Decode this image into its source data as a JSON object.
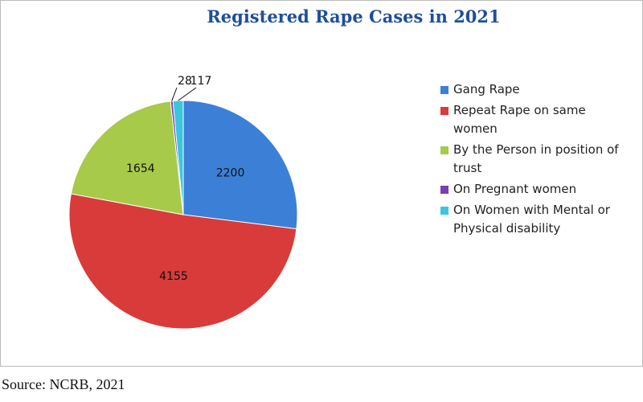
{
  "chart_data": {
    "type": "pie",
    "title": "Registered Rape Cases in 2021",
    "categories": [
      "Gang Rape",
      "Repeat Rape on same women",
      "By the Person in position of trust",
      "On Pregnant women",
      "On Women with Mental or Physical disability"
    ],
    "values": [
      2200,
      4155,
      1654,
      28,
      117
    ],
    "colors": [
      "#3b7fd6",
      "#d83b3a",
      "#a8ca4a",
      "#7a3fb3",
      "#3cc6dd"
    ],
    "legend": "right",
    "source": "Source: NCRB, 2021"
  }
}
